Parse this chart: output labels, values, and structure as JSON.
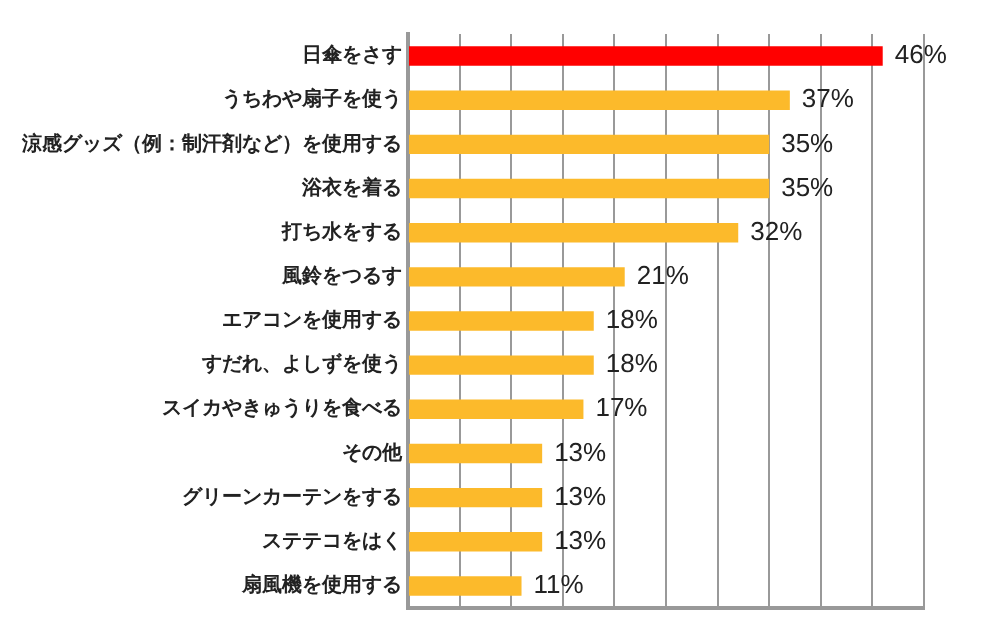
{
  "chart_data": {
    "type": "bar",
    "orientation": "horizontal",
    "categories": [
      "日傘をさす",
      "うちわや扇子を使う",
      "涼感グッズ（例：制汗剤など）を使用する",
      "浴衣を着る",
      "打ち水をする",
      "風鈴をつるす",
      "エアコンを使用する",
      "すだれ、よしずを使う",
      "スイカやきゅうりを食べる",
      "その他",
      "グリーンカーテンをする",
      "ステテコをはく",
      "扇風機を使用する"
    ],
    "values": [
      46,
      37,
      35,
      35,
      32,
      21,
      18,
      18,
      17,
      13,
      13,
      13,
      11
    ],
    "colors": [
      "#ff0000",
      "#fcba2b",
      "#fcba2b",
      "#fcba2b",
      "#fcba2b",
      "#fcba2b",
      "#fcba2b",
      "#fcba2b",
      "#fcba2b",
      "#fcba2b",
      "#fcba2b",
      "#fcba2b",
      "#fcba2b"
    ],
    "value_labels": [
      "46%",
      "37%",
      "35%",
      "35%",
      "32%",
      "21%",
      "18%",
      "18%",
      "17%",
      "13%",
      "13%",
      "13%",
      "11%"
    ],
    "xlim": [
      0,
      50
    ],
    "xticks": [
      {
        "value": 0,
        "label": null
      },
      {
        "value": 5,
        "label": null
      },
      {
        "value": 10,
        "label": null
      },
      {
        "value": 15,
        "label": null
      },
      {
        "value": 20,
        "label": null
      },
      {
        "value": 25,
        "label": null
      },
      {
        "value": 30,
        "label": null
      },
      {
        "value": 35,
        "label": null
      },
      {
        "value": 40,
        "label": null
      },
      {
        "value": 45,
        "label": null
      },
      {
        "value": 50,
        "label": null
      }
    ],
    "grid": "x",
    "tick_labels": "y"
  }
}
